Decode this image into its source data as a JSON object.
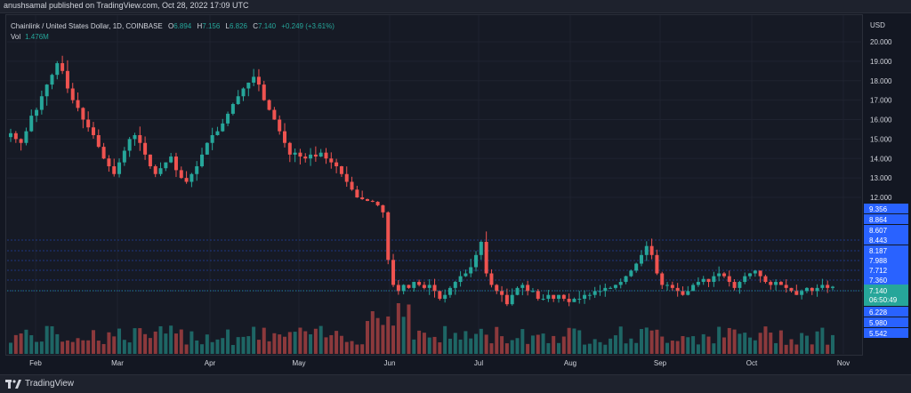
{
  "header": {
    "published": "anushsamal published on TradingView.com, Oct 28, 2022 17:09 UTC"
  },
  "legend": {
    "symbol": "Chainlink / United States Dollar, 1D, COINBASE",
    "o_label": "O",
    "o": "6.894",
    "h_label": "H",
    "h": "7.156",
    "l_label": "L",
    "l": "6.826",
    "c_label": "C",
    "c": "7.140",
    "change": "+0.249 (+3.61%)"
  },
  "volume": {
    "label": "Vol",
    "value": "1.476M"
  },
  "footer": {
    "brand": "TradingView"
  },
  "colors": {
    "up": "#26a69a",
    "down": "#ef5350",
    "badge_blue": "#2962ff",
    "background": "#131722"
  },
  "chart_data": {
    "type": "candlestick",
    "currency": "USD",
    "y_ticks": [
      "20.000",
      "19.000",
      "18.000",
      "17.000",
      "16.000",
      "15.000",
      "14.000",
      "13.000",
      "12.000"
    ],
    "price_badges": [
      "9.356",
      "8.864",
      "8.607",
      "8.443",
      "8.187",
      "7.988",
      "7.712",
      "7.360",
      "7.008",
      "6.732",
      "6.228",
      "5.980",
      "5.542"
    ],
    "current_price": "7.140",
    "countdown": "06:50:49",
    "x_labels": [
      "Feb",
      "Mar",
      "Apr",
      "May",
      "Jun",
      "Jul",
      "Aug",
      "Sep",
      "Oct",
      "Nov"
    ],
    "close_series": [
      15.3,
      15.0,
      14.8,
      15.4,
      16.2,
      16.5,
      17.2,
      17.8,
      18.3,
      18.9,
      18.5,
      17.6,
      17.0,
      16.6,
      16.0,
      15.6,
      15.2,
      14.6,
      14.0,
      13.6,
      13.2,
      13.8,
      14.4,
      15.0,
      15.2,
      14.8,
      14.2,
      13.6,
      13.2,
      13.5,
      13.8,
      14.1,
      13.4,
      13.0,
      12.8,
      13.2,
      13.6,
      14.2,
      14.8,
      15.2,
      15.4,
      15.8,
      16.3,
      16.8,
      17.2,
      17.6,
      17.9,
      18.2,
      17.8,
      17.0,
      16.5,
      16.0,
      15.4,
      14.8,
      14.2,
      14.3,
      14.1,
      14.0,
      14.2,
      14.1,
      14.3,
      14.0,
      13.8,
      13.6,
      13.2,
      12.8,
      12.4,
      12.0,
      11.6,
      11.2,
      11.0,
      10.2,
      9.2,
      8.0,
      7.2,
      7.0,
      7.2,
      7.1,
      7.3,
      7.2,
      7.1,
      7.2,
      7.0,
      6.8,
      6.9,
      7.1,
      7.3,
      7.5,
      7.6,
      7.8,
      8.1,
      8.4,
      7.6,
      7.2,
      7.0,
      6.9,
      6.6,
      6.9,
      7.1,
      7.2,
      7.0,
      7.0,
      6.8,
      6.8,
      6.9,
      6.8,
      6.9,
      6.8,
      6.7,
      6.8,
      6.8,
      6.9,
      6.9,
      7.0,
      7.0,
      7.1,
      7.1,
      7.2,
      7.3,
      7.5,
      7.7,
      7.9,
      8.1,
      8.3,
      8.1,
      7.6,
      7.2,
      7.2,
      7.1,
      7.0,
      6.9,
      7.0,
      7.2,
      7.3,
      7.4,
      7.3,
      7.5,
      7.6,
      7.5,
      7.3,
      7.1,
      7.3,
      7.5,
      7.6,
      7.7,
      7.5,
      7.3,
      7.2,
      7.3,
      7.2,
      7.1,
      7.0,
      6.9,
      7.0,
      7.1,
      7.0,
      7.1,
      7.2,
      7.1,
      7.14
    ]
  }
}
